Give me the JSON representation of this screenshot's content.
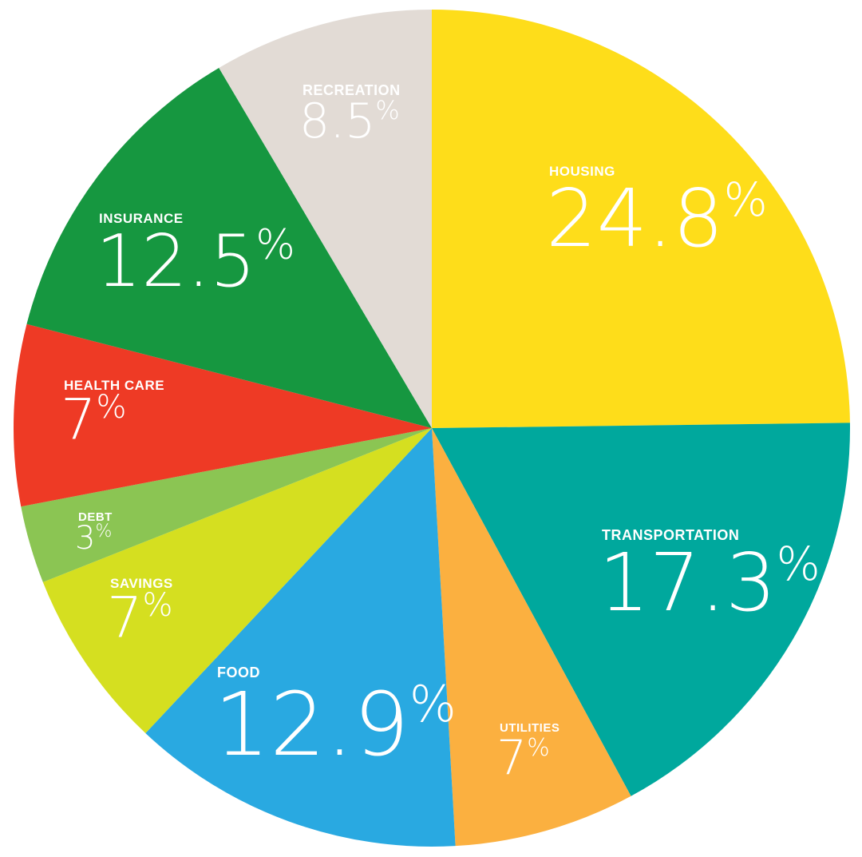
{
  "chart_data": {
    "type": "pie",
    "title": "",
    "slices": [
      {
        "label": "HOUSING",
        "value": 24.8,
        "value_text": "24.8",
        "unit": "%",
        "color": "#fedd1a"
      },
      {
        "label": "TRANSPORTATION",
        "value": 17.3,
        "value_text": "17.3",
        "unit": "%",
        "color": "#00a89d"
      },
      {
        "label": "UTILITIES",
        "value": 7,
        "value_text": "7",
        "unit": "%",
        "color": "#fbb040"
      },
      {
        "label": "FOOD",
        "value": 12.9,
        "value_text": "12.9",
        "unit": "%",
        "color": "#29a9e1"
      },
      {
        "label": "SAVINGS",
        "value": 7,
        "value_text": "7",
        "unit": "%",
        "color": "#d5df20"
      },
      {
        "label": "DEBT",
        "value": 3,
        "value_text": "3",
        "unit": "%",
        "color": "#8bc553"
      },
      {
        "label": "HEALTH CARE",
        "value": 7,
        "value_text": "7",
        "unit": "%",
        "color": "#ee3a25"
      },
      {
        "label": "INSURANCE",
        "value": 12.5,
        "value_text": "12.5",
        "unit": "%",
        "color": "#169740"
      },
      {
        "label": "RECREATION",
        "value": 8.5,
        "value_text": "8.5",
        "unit": "%",
        "color": "#e2dbd5"
      }
    ]
  }
}
